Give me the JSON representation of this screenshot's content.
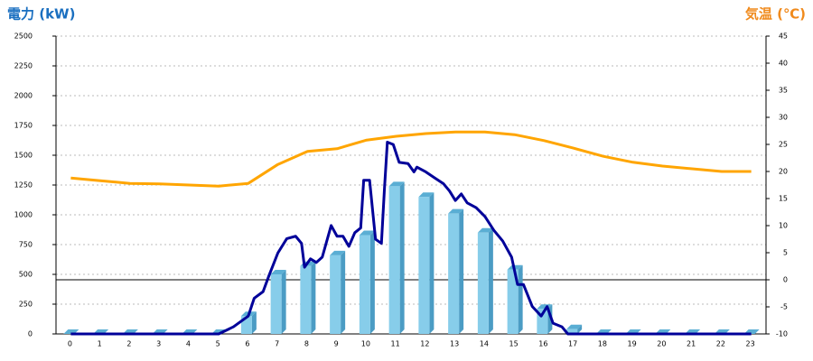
{
  "chart_data": {
    "type": "bar",
    "y_label": "電力 (kW)",
    "y2_label": "気温 (℃)",
    "categories": [
      "0",
      "1",
      "2",
      "3",
      "4",
      "5",
      "6",
      "7",
      "8",
      "9",
      "10",
      "11",
      "12",
      "13",
      "14",
      "15",
      "16",
      "17",
      "18",
      "19",
      "20",
      "21",
      "22",
      "23"
    ],
    "ylim": [
      0,
      2500
    ],
    "yticks": [
      0,
      250,
      500,
      750,
      1000,
      1250,
      1500,
      1750,
      2000,
      2250,
      2500
    ],
    "y2lim": [
      -10,
      45
    ],
    "y2ticks": [
      -10,
      -5,
      0,
      5,
      10,
      15,
      20,
      25,
      30,
      35,
      40,
      45
    ],
    "y2_baseline": 0,
    "grid": true,
    "series": [
      {
        "type": "bar",
        "color": "#87cdea",
        "values": [
          0,
          0,
          0,
          0,
          0,
          0,
          150,
          500,
          570,
          660,
          830,
          1240,
          1150,
          1010,
          850,
          540,
          210,
          40,
          0,
          0,
          0,
          0,
          0,
          0
        ]
      },
      {
        "type": "line",
        "color": "#000099",
        "x": [
          0,
          1,
          2,
          3,
          4,
          5,
          5.5,
          6,
          6.2,
          6.5,
          6.7,
          7,
          7.3,
          7.6,
          7.8,
          7.9,
          8.1,
          8.3,
          8.5,
          8.8,
          9,
          9.2,
          9.4,
          9.6,
          9.8,
          9.9,
          10.1,
          10.3,
          10.5,
          10.6,
          10.7,
          10.9,
          11.1,
          11.4,
          11.6,
          11.7,
          12,
          12.3,
          12.6,
          12.8,
          13,
          13.2,
          13.4,
          13.7,
          14,
          14.3,
          14.6,
          14.9,
          15.1,
          15.3,
          15.6,
          15.9,
          16.1,
          16.3,
          16.6,
          16.8,
          17,
          18,
          19,
          20,
          21,
          22,
          23
        ],
        "values": [
          0,
          0,
          0,
          0,
          0,
          0,
          60,
          150,
          300,
          355,
          490,
          680,
          800,
          820,
          760,
          560,
          630,
          600,
          645,
          910,
          820,
          820,
          735,
          850,
          890,
          1290,
          1290,
          795,
          760,
          1210,
          1610,
          1590,
          1440,
          1430,
          1360,
          1400,
          1360,
          1310,
          1260,
          1200,
          1120,
          1175,
          1100,
          1060,
          985,
          870,
          780,
          645,
          415,
          415,
          230,
          150,
          230,
          90,
          60,
          0,
          0,
          0,
          0,
          0,
          0,
          0,
          0
        ]
      },
      {
        "type": "line",
        "axis": "y2",
        "color": "#ffa500",
        "values": [
          18.8,
          18.3,
          17.8,
          17.7,
          17.5,
          17.3,
          17.8,
          21.3,
          23.7,
          24.2,
          25.8,
          26.5,
          27,
          27.3,
          27.3,
          26.8,
          25.7,
          24.3,
          22.8,
          21.7,
          21,
          20.5,
          20,
          20
        ]
      }
    ]
  }
}
